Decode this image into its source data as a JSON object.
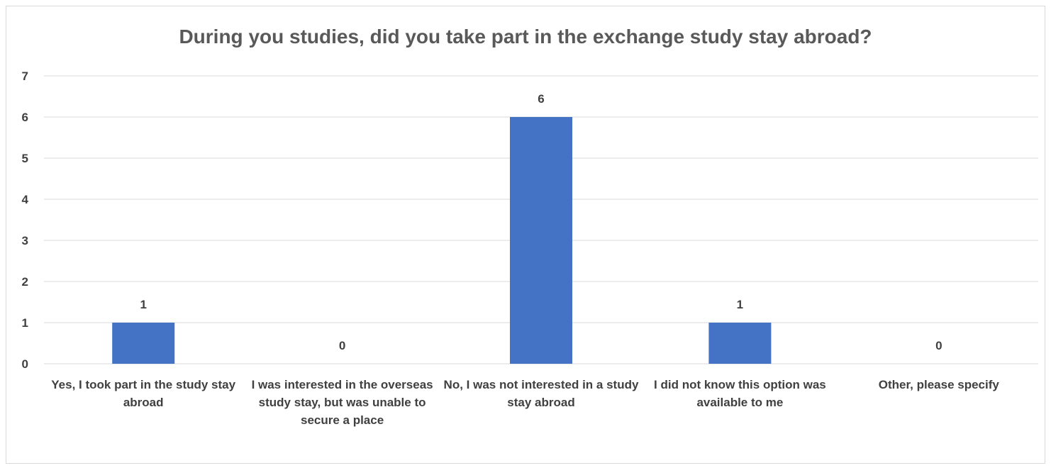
{
  "chart_data": {
    "type": "bar",
    "title": "During you studies, did you take part in the exchange study stay abroad?",
    "categories": [
      "Yes, I took part in the study stay abroad",
      "I was interested in the overseas study stay, but was unable to secure a place",
      "No, I was not interested in a study stay abroad",
      "I did not know this option was available to me",
      "Other, please specify"
    ],
    "values": [
      1,
      0,
      6,
      1,
      0
    ],
    "ylim": [
      0,
      7
    ],
    "yticks": [
      "0",
      "1",
      "2",
      "3",
      "4",
      "5",
      "6",
      "7"
    ],
    "xlabel": "",
    "ylabel": "",
    "grid": true,
    "legend": "none",
    "bar_color": "#4472c4",
    "grid_color": "#d9d9d9"
  }
}
